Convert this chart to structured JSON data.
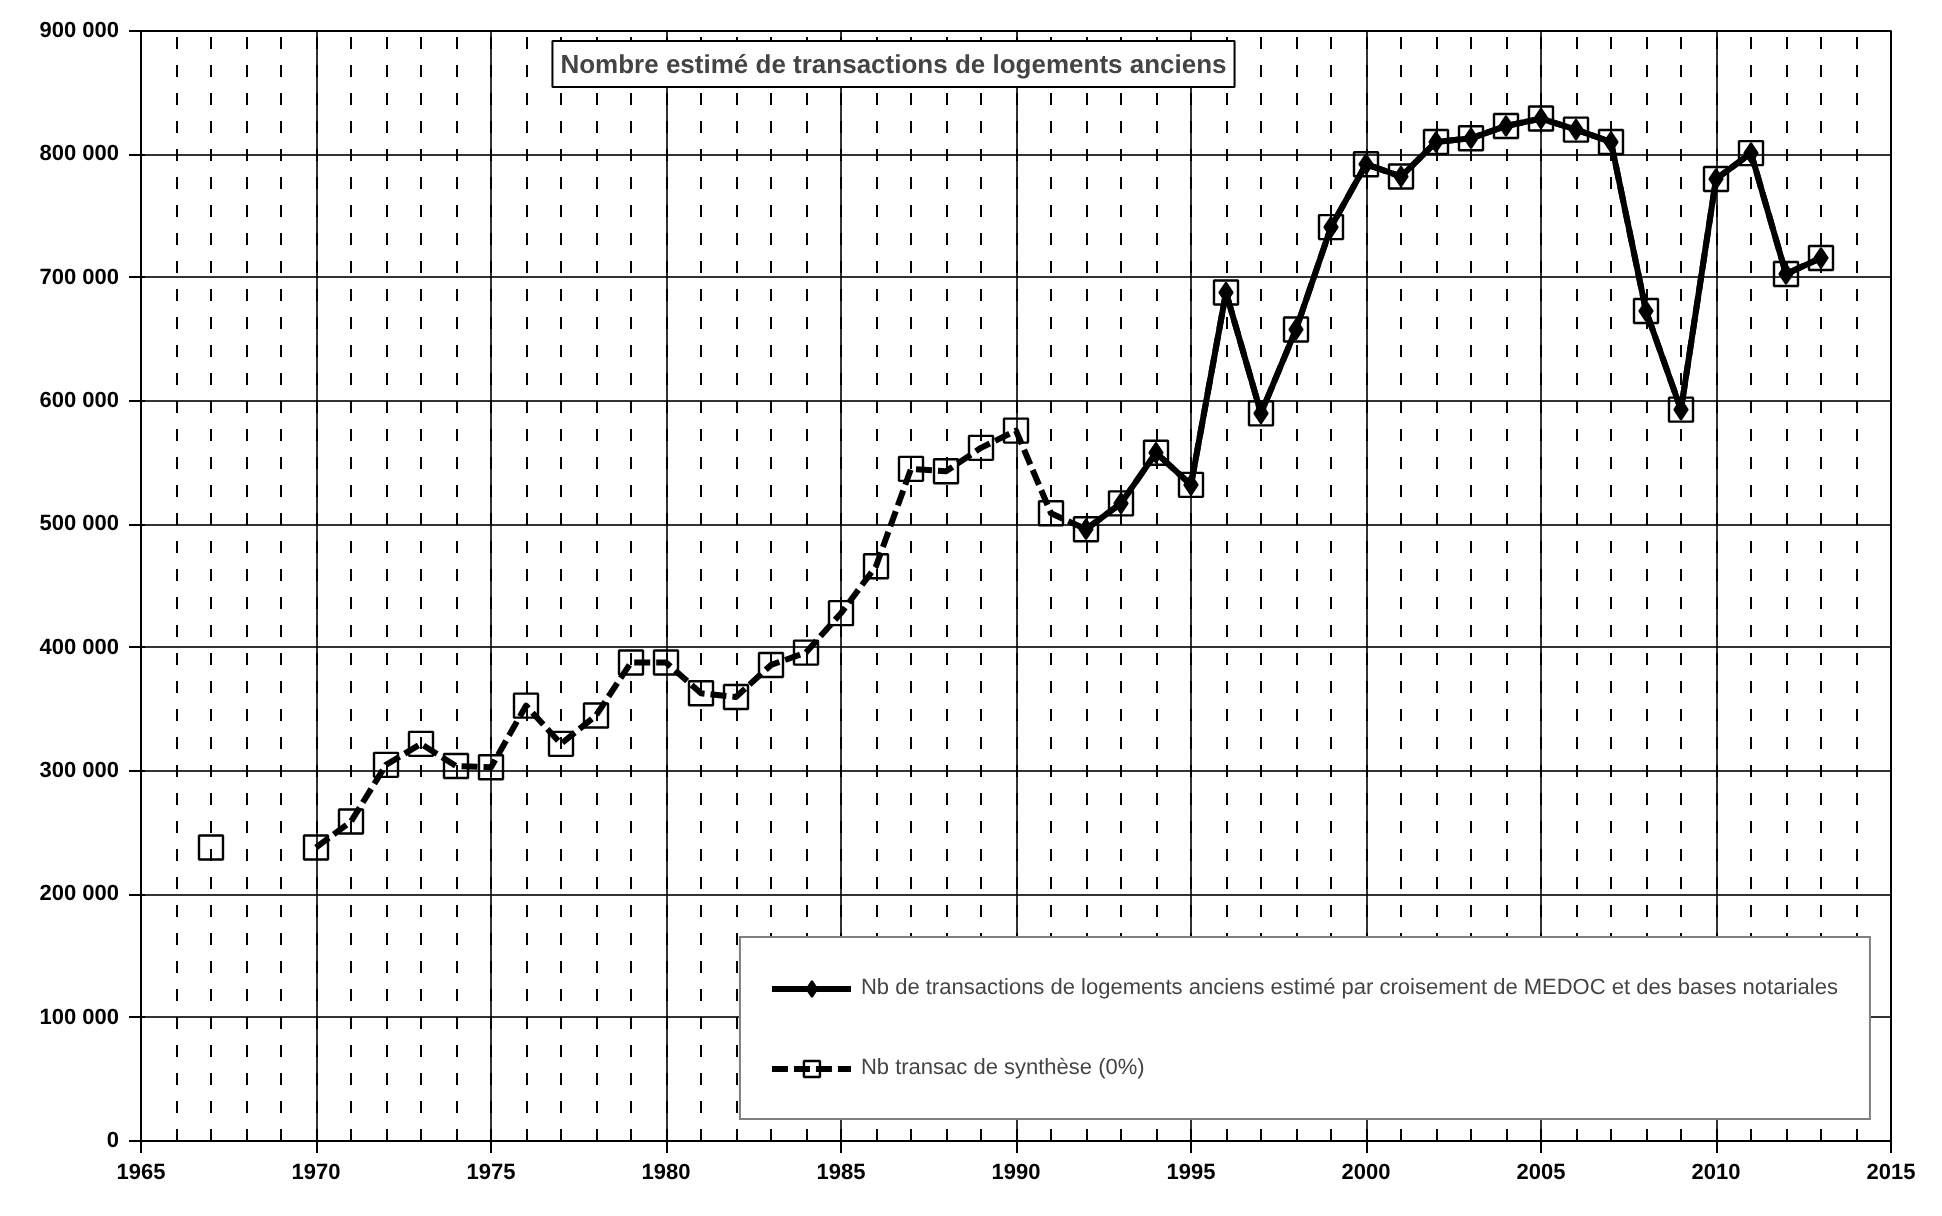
{
  "chart_data": {
    "type": "line",
    "title": "Nombre estimé de transactions de logements anciens",
    "x": [
      1967,
      1968,
      1969,
      1970,
      1971,
      1972,
      1973,
      1974,
      1975,
      1976,
      1977,
      1978,
      1979,
      1980,
      1981,
      1982,
      1983,
      1984,
      1985,
      1986,
      1987,
      1988,
      1989,
      1990,
      1991,
      1992,
      1993,
      1994,
      1995,
      1996,
      1997,
      1998,
      1999,
      2000,
      2001,
      2002,
      2003,
      2004,
      2005,
      2006,
      2007,
      2008,
      2009,
      2010,
      2011,
      2012,
      2013
    ],
    "series": [
      {
        "name": "Nb de transactions de logements anciens estimé par croisement de MEDOC et des bases notariales",
        "color": "#000000",
        "marker": "diamond",
        "line_style": "solid",
        "values": [
          null,
          null,
          null,
          null,
          null,
          null,
          null,
          null,
          null,
          null,
          null,
          null,
          null,
          null,
          null,
          null,
          null,
          null,
          null,
          null,
          null,
          null,
          null,
          null,
          null,
          496000,
          517000,
          558000,
          532000,
          688000,
          590000,
          658000,
          741000,
          792000,
          782000,
          810000,
          813000,
          823000,
          829000,
          820000,
          810000,
          673000,
          593000,
          780000,
          801000,
          703000,
          716000
        ]
      },
      {
        "name": "Nb transac de synthèse (0%)",
        "color": "#000000",
        "marker": "square",
        "line_style": "dashed",
        "values": [
          238000,
          null,
          null,
          238000,
          259000,
          305000,
          322000,
          304000,
          303000,
          353000,
          322000,
          345000,
          388000,
          388000,
          363000,
          360000,
          386000,
          396000,
          428000,
          466000,
          545000,
          543000,
          562000,
          576000,
          509000,
          496000,
          517000,
          558000,
          532000,
          688000,
          590000,
          658000,
          741000,
          792000,
          782000,
          810000,
          813000,
          823000,
          829000,
          820000,
          810000,
          673000,
          593000,
          780000,
          801000,
          703000,
          716000
        ]
      }
    ],
    "xlim": [
      1965,
      2015
    ],
    "xticks": [
      1965,
      1970,
      1975,
      1980,
      1985,
      1990,
      1995,
      2000,
      2005,
      2010,
      2015
    ],
    "ylim": [
      0,
      900000
    ],
    "yticks": [
      {
        "value": 0,
        "label": "0"
      },
      {
        "value": 100000,
        "label": "100 000"
      },
      {
        "value": 200000,
        "label": "200 000"
      },
      {
        "value": 300000,
        "label": "300 000"
      },
      {
        "value": 400000,
        "label": "400 000"
      },
      {
        "value": 500000,
        "label": "500 000"
      },
      {
        "value": 600000,
        "label": "600 000"
      },
      {
        "value": 700000,
        "label": "700 000"
      },
      {
        "value": 800000,
        "label": "800 000"
      },
      {
        "value": 900000,
        "label": "900 000"
      }
    ],
    "grid": true,
    "legend": "bottom right"
  }
}
